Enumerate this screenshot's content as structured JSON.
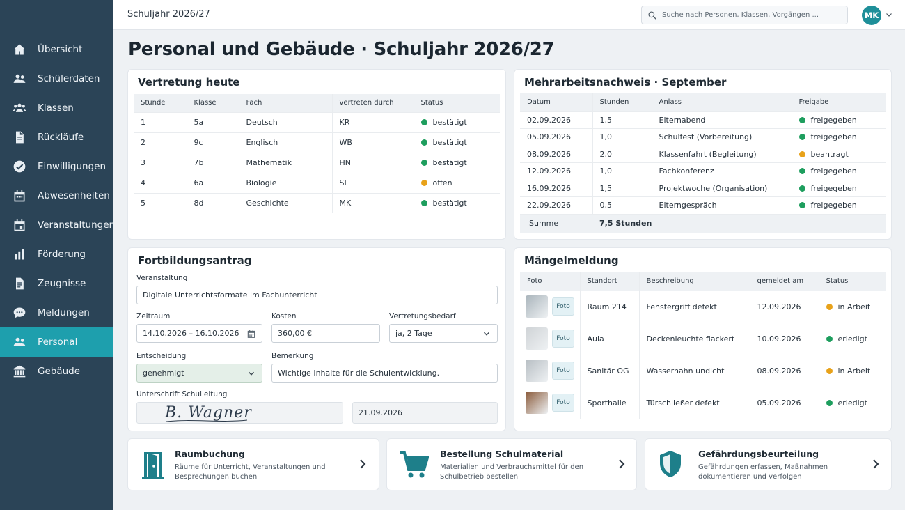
{
  "topbar": {
    "title": "Schuljahr 2026/27",
    "search_placeholder": "Suche nach Personen, Klassen, Vorgängen ...",
    "avatar_initials": "MK"
  },
  "sidebar": {
    "items": [
      {
        "label": "Übersicht",
        "icon": "home-icon"
      },
      {
        "label": "Schülerdaten",
        "icon": "users-icon"
      },
      {
        "label": "Klassen",
        "icon": "group-icon"
      },
      {
        "label": "Rückläufe",
        "icon": "document-icon"
      },
      {
        "label": "Einwilligungen",
        "icon": "check-circle-icon"
      },
      {
        "label": "Abwesenheiten",
        "icon": "calendar-icon"
      },
      {
        "label": "Veranstaltungen",
        "icon": "calendar-event-icon"
      },
      {
        "label": "Förderung",
        "icon": "bar-chart-icon"
      },
      {
        "label": "Zeugnisse",
        "icon": "report-icon"
      },
      {
        "label": "Meldungen",
        "icon": "chat-icon"
      },
      {
        "label": "Personal",
        "icon": "person-icon",
        "active": true
      },
      {
        "label": "Gebäude",
        "icon": "building-icon"
      }
    ]
  },
  "page": {
    "title": "Personal und Gebäude · Schuljahr 2026/27"
  },
  "vertretung": {
    "title": "Vertretung heute",
    "headers": [
      "Stunde",
      "Klasse",
      "Fach",
      "vertreten durch",
      "Status"
    ],
    "rows": [
      {
        "stunde": "1",
        "klasse": "5a",
        "fach": "Deutsch",
        "durch": "KR",
        "status": "bestätigt",
        "color": "#1e9e5e"
      },
      {
        "stunde": "2",
        "klasse": "9c",
        "fach": "Englisch",
        "durch": "WB",
        "status": "bestätigt",
        "color": "#1e9e5e"
      },
      {
        "stunde": "3",
        "klasse": "7b",
        "fach": "Mathematik",
        "durch": "HN",
        "status": "bestätigt",
        "color": "#1e9e5e"
      },
      {
        "stunde": "4",
        "klasse": "6a",
        "fach": "Biologie",
        "durch": "SL",
        "status": "offen",
        "color": "#e8a21a"
      },
      {
        "stunde": "5",
        "klasse": "8d",
        "fach": "Geschichte",
        "durch": "MK",
        "status": "bestätigt",
        "color": "#1e9e5e"
      }
    ]
  },
  "mehrarbeit": {
    "title": "Mehrarbeitsnachweis · September",
    "headers": [
      "Datum",
      "Stunden",
      "Anlass",
      "Freigabe"
    ],
    "rows": [
      {
        "datum": "02.09.2026",
        "stunden": "1,5",
        "anlass": "Elternabend",
        "freigabe": "freigegeben",
        "color": "#1e9e5e"
      },
      {
        "datum": "05.09.2026",
        "stunden": "1,0",
        "anlass": "Schulfest (Vorbereitung)",
        "freigabe": "freigegeben",
        "color": "#1e9e5e"
      },
      {
        "datum": "08.09.2026",
        "stunden": "2,0",
        "anlass": "Klassenfahrt (Begleitung)",
        "freigabe": "beantragt",
        "color": "#e8a21a"
      },
      {
        "datum": "12.09.2026",
        "stunden": "1,0",
        "anlass": "Fachkonferenz",
        "freigabe": "freigegeben",
        "color": "#1e9e5e"
      },
      {
        "datum": "16.09.2026",
        "stunden": "1,5",
        "anlass": "Projektwoche (Organisation)",
        "freigabe": "freigegeben",
        "color": "#1e9e5e"
      },
      {
        "datum": "22.09.2026",
        "stunden": "0,5",
        "anlass": "Elterngespräch",
        "freigabe": "freigegeben",
        "color": "#1e9e5e"
      }
    ],
    "summe_label": "Summe",
    "summe_value": "7,5 Stunden"
  },
  "fortbildung": {
    "title": "Fortbildungsantrag",
    "veranstaltung_label": "Veranstaltung",
    "veranstaltung_value": "Digitale Unterrichtsformate im Fachunterricht",
    "zeitraum_label": "Zeitraum",
    "zeitraum_value": "14.10.2026 – 16.10.2026",
    "kosten_label": "Kosten",
    "kosten_value": "360,00 €",
    "vertretungsbedarf_label": "Vertretungsbedarf",
    "vertretungsbedarf_value": "ja, 2 Tage",
    "entscheidung_label": "Entscheidung",
    "entscheidung_value": "genehmigt",
    "bemerkung_label": "Bemerkung",
    "bemerkung_value": "Wichtige Inhalte für die Schulentwicklung.",
    "unterschrift_label": "Unterschrift Schulleitung",
    "unterschrift_name": "B. Wagner",
    "unterschrift_datum": "21.09.2026"
  },
  "maengel": {
    "title": "Mängelmeldung",
    "headers": [
      "Foto",
      "Standort",
      "Beschreibung",
      "gemeldet am",
      "Status"
    ],
    "foto_label": "Foto",
    "rows": [
      {
        "standort": "Raum 214",
        "beschreibung": "Fenstergriff defekt",
        "datum": "12.09.2026",
        "status": "in Arbeit",
        "color": "#e8a21a",
        "thumb": "#a9b4bb"
      },
      {
        "standort": "Aula",
        "beschreibung": "Deckenleuchte flackert",
        "datum": "10.09.2026",
        "status": "erledigt",
        "color": "#1e9e5e",
        "thumb": "#cfd3d6"
      },
      {
        "standort": "Sanitär OG",
        "beschreibung": "Wasserhahn undicht",
        "datum": "08.09.2026",
        "status": "in Arbeit",
        "color": "#e8a21a",
        "thumb": "#b7bec3"
      },
      {
        "standort": "Sporthalle",
        "beschreibung": "Türschließer defekt",
        "datum": "05.09.2026",
        "status": "erledigt",
        "color": "#1e9e5e",
        "thumb": "#8a5a3a"
      }
    ]
  },
  "links": [
    {
      "title": "Raumbuchung",
      "desc1": "Räume für Unterricht, Veranstaltungen und",
      "desc2": "Besprechungen buchen",
      "icon": "door-icon"
    },
    {
      "title": "Bestellung Schulmaterial",
      "desc1": "Materialien und Verbrauchsmittel für den",
      "desc2": "Schulbetrieb bestellen",
      "icon": "cart-icon"
    },
    {
      "title": "Gefährdungsbeurteilung",
      "desc1": "Gefährdungen erfassen, Maßnahmen",
      "desc2": "dokumentieren und verfolgen",
      "icon": "shield-icon"
    }
  ],
  "colors": {
    "sidebar": "#2b4457",
    "active": "#1e9fad",
    "accent": "#1e8f99",
    "ok": "#1e9e5e",
    "pending": "#e8a21a"
  }
}
